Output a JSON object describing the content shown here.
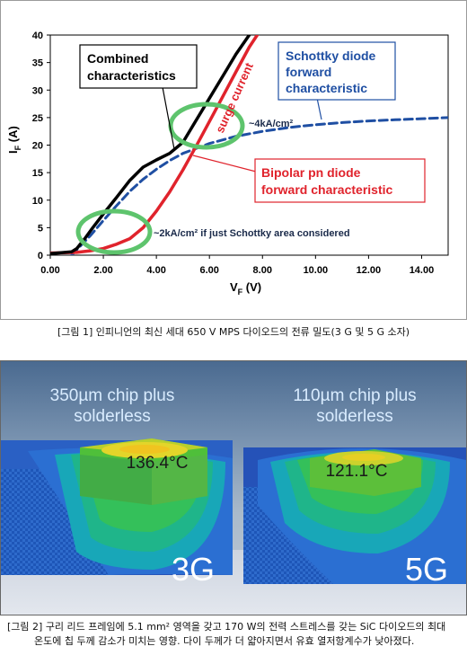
{
  "figure1": {
    "caption": "[그림 1] 인피니언의 최신 세대 650 V MPS 다이오드의 전류 밀도(3 G 및 5 G 소자)",
    "chart_data": {
      "type": "line",
      "xlabel_main": "V",
      "xlabel_sub": "F",
      "xlabel_unit": " (V)",
      "ylabel_main": "I",
      "ylabel_sub": "F",
      "ylabel_unit": " (A)",
      "xlim": [
        0,
        15
      ],
      "ylim": [
        0,
        40
      ],
      "xticks": [
        0,
        2,
        4,
        6,
        8,
        10,
        12,
        14
      ],
      "xtick_labels": [
        "0.00",
        "2.00",
        "4.00",
        "6.00",
        "8.00",
        "10.00",
        "12.00",
        "14.00"
      ],
      "yticks": [
        0,
        5,
        10,
        15,
        20,
        25,
        30,
        35,
        40
      ],
      "ytick_labels": [
        "0",
        "5",
        "10",
        "15",
        "20",
        "25",
        "30",
        "35",
        "40"
      ],
      "series": [
        {
          "key": "combined",
          "color": "#000000",
          "x": [
            0,
            0.8,
            1.0,
            1.3,
            1.6,
            2.0,
            2.5,
            3.0,
            3.5,
            4.0,
            4.5,
            5.0,
            5.5,
            6.0,
            6.5,
            7.0,
            7.5
          ],
          "y": [
            0.3,
            0.6,
            1.2,
            3.0,
            5.0,
            7.5,
            10.5,
            13.6,
            16.0,
            17.3,
            18.5,
            20.5,
            24.5,
            28.5,
            32.5,
            36.5,
            40.0
          ]
        },
        {
          "key": "schottky",
          "color": "#1f4fa3",
          "dashed": true,
          "x": [
            0.8,
            1.0,
            1.5,
            2.0,
            2.5,
            3.0,
            3.5,
            4.0,
            4.5,
            5.0,
            6.0,
            7.0,
            8.0,
            9.0,
            10.0,
            11.0,
            12.0,
            13.0,
            14.0,
            15.0
          ],
          "y": [
            0,
            1.0,
            3.5,
            6.3,
            9.0,
            11.6,
            13.8,
            15.6,
            17.2,
            18.5,
            20.3,
            21.6,
            22.5,
            23.2,
            23.7,
            24.1,
            24.4,
            24.6,
            24.8,
            25.0
          ]
        },
        {
          "key": "bipolar",
          "color": "#e0232c",
          "x": [
            0,
            1.0,
            1.5,
            2.0,
            2.5,
            3.0,
            3.5,
            4.0,
            4.5,
            5.0,
            5.5,
            6.0,
            6.5,
            7.0,
            7.5,
            7.8
          ],
          "y": [
            0.4,
            0.5,
            0.8,
            1.2,
            2.0,
            3.0,
            5.0,
            8.0,
            11.5,
            15.5,
            19.8,
            24.3,
            28.8,
            33.3,
            37.8,
            40.0
          ]
        }
      ],
      "annotations": {
        "combined_label_1": "Combined",
        "combined_label_2": "characteristics",
        "schottky_label_1": "Schottky diode",
        "schottky_label_2": "forward",
        "schottky_label_3": "characteristic",
        "bipolar_label_1": "Bipolar pn diode",
        "bipolar_label_2": "forward characteristic",
        "surge_label": "surge current",
        "density_4k": "~4kA/cm²",
        "density_2k": "~2kA/cm² if just Schottky area considered"
      },
      "colors": {
        "combined": "#000000",
        "schottky": "#1f4fa3",
        "bipolar": "#e0232c",
        "ellipse": "#5ec46d"
      }
    }
  },
  "figure2": {
    "caption_line1": "[그림 2] 구리 리드 프레임에 5.1 mm² 영역을 갖고 170 W의 전력 스트레스를 갖는 SiC 다이오드의 최대",
    "caption_line2": "온도에 칩 두께 감소가 미치는 영향. 다이 두께가 더 얇아지면서 유효 열저항계수가 낮아졌다.",
    "left": {
      "title_1": "350µm chip plus",
      "title_2": "solderless",
      "temperature": "136.4°C",
      "generation": "3G"
    },
    "right": {
      "title_1": "110µm chip plus",
      "title_2": "solderless",
      "temperature": "121.1°C",
      "generation": "5G"
    }
  }
}
